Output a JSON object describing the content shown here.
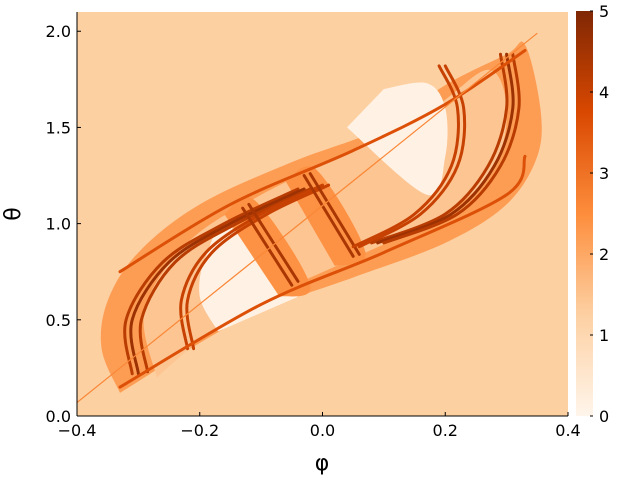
{
  "chart_data": {
    "type": "heatmap",
    "title": "",
    "xlabel": "φ",
    "ylabel": "θ",
    "xlim": [
      -0.4,
      0.4
    ],
    "ylim": [
      0.0,
      2.1
    ],
    "x_ticks": [
      {
        "value": -0.4,
        "label": "−0.4"
      },
      {
        "value": -0.2,
        "label": "−0.2"
      },
      {
        "value": 0.0,
        "label": "0.0"
      },
      {
        "value": 0.2,
        "label": "0.2"
      },
      {
        "value": 0.4,
        "label": "0.4"
      }
    ],
    "y_ticks": [
      {
        "value": 0.0,
        "label": "0.0"
      },
      {
        "value": 0.5,
        "label": "0.5"
      },
      {
        "value": 1.0,
        "label": "1.0"
      },
      {
        "value": 1.5,
        "label": "1.5"
      },
      {
        "value": 2.0,
        "label": "2.0"
      }
    ],
    "colorbar": {
      "range": [
        0,
        5
      ],
      "ticks": [
        {
          "value": 0,
          "label": "0"
        },
        {
          "value": 1,
          "label": "1"
        },
        {
          "value": 2,
          "label": "2"
        },
        {
          "value": 3,
          "label": "3"
        },
        {
          "value": 4,
          "label": "4"
        },
        {
          "value": 5,
          "label": "5"
        }
      ],
      "colormap": [
        "#fff5eb",
        "#fdd0a2",
        "#fd8d3c",
        "#d94801",
        "#7f2704"
      ]
    },
    "background_level": 1.25,
    "regions": [
      {
        "name": "outer-band",
        "level": 2.2,
        "polygon": [
          [
            -0.33,
            0.12
          ],
          [
            -0.36,
            0.35
          ],
          [
            -0.35,
            0.6
          ],
          [
            -0.3,
            0.85
          ],
          [
            -0.2,
            1.1
          ],
          [
            -0.05,
            1.32
          ],
          [
            0.1,
            1.5
          ],
          [
            0.2,
            1.72
          ],
          [
            0.3,
            1.88
          ],
          [
            0.33,
            1.93
          ],
          [
            0.355,
            1.6
          ],
          [
            0.35,
            1.35
          ],
          [
            0.3,
            1.1
          ],
          [
            0.2,
            0.9
          ],
          [
            0.05,
            0.72
          ],
          [
            -0.1,
            0.55
          ],
          [
            -0.2,
            0.38
          ],
          [
            -0.3,
            0.18
          ]
        ]
      },
      {
        "name": "lens-interior",
        "level": 1.45,
        "polygon": [
          [
            -0.27,
            0.2
          ],
          [
            -0.29,
            0.55
          ],
          [
            -0.22,
            0.9
          ],
          [
            -0.1,
            1.15
          ],
          [
            0.05,
            1.38
          ],
          [
            0.18,
            1.6
          ],
          [
            0.27,
            1.8
          ],
          [
            0.3,
            1.6
          ],
          [
            0.28,
            1.3
          ],
          [
            0.2,
            1.05
          ],
          [
            0.05,
            0.82
          ],
          [
            -0.1,
            0.6
          ],
          [
            -0.2,
            0.4
          ]
        ]
      },
      {
        "name": "white-left",
        "level": 0.1,
        "polygon": [
          [
            -0.17,
            0.44
          ],
          [
            -0.2,
            0.62
          ],
          [
            -0.19,
            0.83
          ],
          [
            -0.15,
            0.98
          ],
          [
            -0.04,
            0.62
          ]
        ]
      },
      {
        "name": "white-right",
        "level": 0.1,
        "polygon": [
          [
            0.04,
            1.5
          ],
          [
            0.17,
            1.15
          ],
          [
            0.2,
            1.35
          ],
          [
            0.2,
            1.6
          ],
          [
            0.17,
            1.73
          ],
          [
            0.1,
            1.7
          ]
        ]
      },
      {
        "name": "inner-strip-left",
        "level": 2.4,
        "polygon": [
          [
            -0.16,
            1.05
          ],
          [
            -0.11,
            1.12
          ],
          [
            -0.02,
            0.68
          ],
          [
            -0.07,
            0.62
          ]
        ]
      },
      {
        "name": "inner-strip-mid",
        "level": 2.4,
        "polygon": [
          [
            -0.06,
            1.22
          ],
          [
            -0.01,
            1.28
          ],
          [
            0.07,
            0.85
          ],
          [
            0.02,
            0.78
          ]
        ]
      }
    ],
    "curves": [
      {
        "level": 4.2,
        "points": [
          [
            -0.31,
            0.22
          ],
          [
            -0.32,
            0.5
          ],
          [
            -0.26,
            0.8
          ],
          [
            -0.16,
            1.0
          ],
          [
            -0.04,
            1.18
          ]
        ]
      },
      {
        "level": 4.6,
        "points": [
          [
            -0.3,
            0.22
          ],
          [
            -0.31,
            0.5
          ],
          [
            -0.25,
            0.8
          ],
          [
            -0.15,
            1.0
          ],
          [
            -0.03,
            1.18
          ]
        ]
      },
      {
        "level": 4.2,
        "points": [
          [
            -0.285,
            0.23
          ],
          [
            -0.295,
            0.5
          ],
          [
            -0.24,
            0.8
          ],
          [
            -0.14,
            1.0
          ],
          [
            -0.02,
            1.18
          ]
        ]
      },
      {
        "level": 4.0,
        "points": [
          [
            -0.22,
            0.35
          ],
          [
            -0.23,
            0.6
          ],
          [
            -0.19,
            0.85
          ],
          [
            -0.1,
            1.05
          ],
          [
            0.0,
            1.2
          ]
        ]
      },
      {
        "level": 4.0,
        "points": [
          [
            -0.21,
            0.35
          ],
          [
            -0.22,
            0.6
          ],
          [
            -0.18,
            0.85
          ],
          [
            -0.09,
            1.05
          ],
          [
            0.01,
            1.2
          ]
        ]
      },
      {
        "level": 4.4,
        "points": [
          [
            -0.13,
            1.08
          ],
          [
            -0.05,
            0.68
          ]
        ]
      },
      {
        "level": 4.4,
        "points": [
          [
            -0.12,
            1.1
          ],
          [
            -0.04,
            0.7
          ]
        ]
      },
      {
        "level": 4.4,
        "points": [
          [
            -0.03,
            1.25
          ],
          [
            0.05,
            0.83
          ]
        ]
      },
      {
        "level": 4.4,
        "points": [
          [
            -0.02,
            1.26
          ],
          [
            0.06,
            0.84
          ]
        ]
      },
      {
        "level": 4.0,
        "points": [
          [
            0.19,
            1.82
          ],
          [
            0.22,
            1.6
          ],
          [
            0.21,
            1.3
          ],
          [
            0.15,
            1.05
          ],
          [
            0.05,
            0.88
          ]
        ]
      },
      {
        "level": 4.0,
        "points": [
          [
            0.2,
            1.82
          ],
          [
            0.23,
            1.6
          ],
          [
            0.22,
            1.3
          ],
          [
            0.16,
            1.05
          ],
          [
            0.06,
            0.88
          ]
        ]
      },
      {
        "level": 4.2,
        "points": [
          [
            0.29,
            1.88
          ],
          [
            0.3,
            1.6
          ],
          [
            0.27,
            1.3
          ],
          [
            0.2,
            1.05
          ],
          [
            0.08,
            0.9
          ]
        ]
      },
      {
        "level": 4.6,
        "points": [
          [
            0.3,
            1.88
          ],
          [
            0.31,
            1.6
          ],
          [
            0.28,
            1.3
          ],
          [
            0.21,
            1.05
          ],
          [
            0.09,
            0.9
          ]
        ]
      },
      {
        "level": 4.2,
        "points": [
          [
            0.31,
            1.88
          ],
          [
            0.32,
            1.6
          ],
          [
            0.29,
            1.3
          ],
          [
            0.22,
            1.05
          ],
          [
            0.1,
            0.9
          ]
        ]
      },
      {
        "level": 3.6,
        "points": [
          [
            -0.33,
            0.15
          ],
          [
            -0.1,
            0.58
          ],
          [
            0.1,
            0.85
          ],
          [
            0.3,
            1.15
          ],
          [
            0.33,
            1.35
          ]
        ]
      },
      {
        "level": 3.6,
        "points": [
          [
            -0.33,
            0.75
          ],
          [
            -0.15,
            1.1
          ],
          [
            0.05,
            1.38
          ],
          [
            0.2,
            1.62
          ],
          [
            0.33,
            1.9
          ]
        ]
      }
    ],
    "diagonal": {
      "level": 2.6,
      "points": [
        [
          -0.4,
          0.07
        ],
        [
          0.35,
          1.99
        ]
      ]
    }
  }
}
